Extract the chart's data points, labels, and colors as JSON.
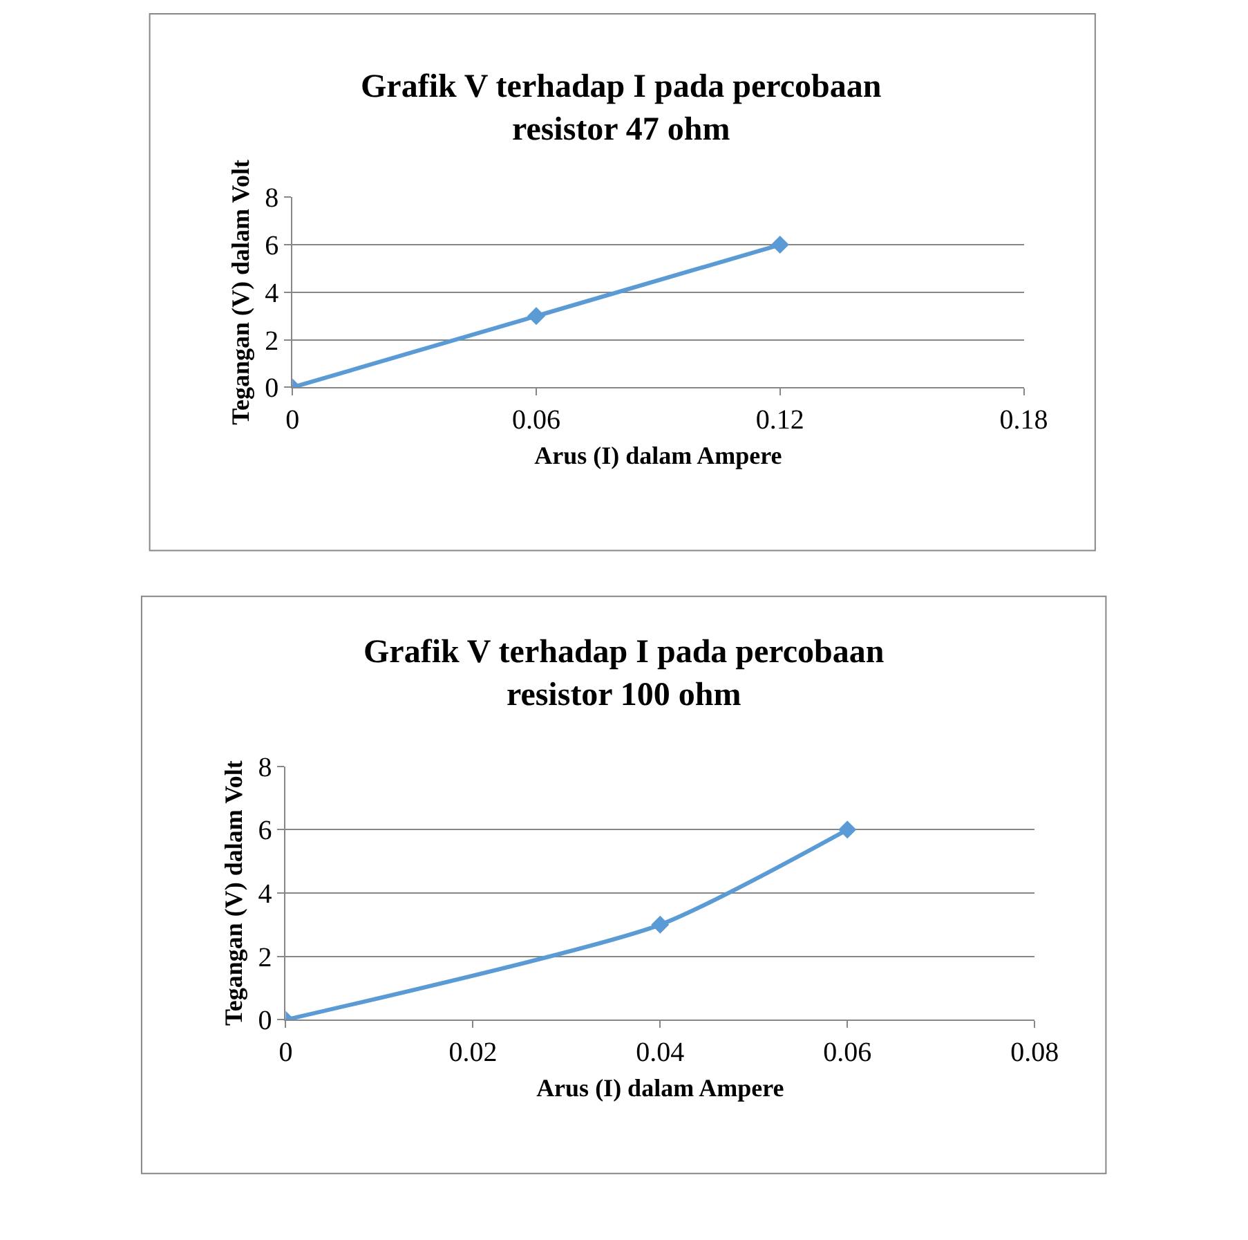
{
  "chart_data": [
    {
      "type": "line",
      "title": "Grafik V terhadap I pada percobaan resistor 47 ohm",
      "xlabel": "Arus (I) dalam Ampere",
      "ylabel": "Tegangan (V) dalam Volt",
      "x": [
        0,
        0.06,
        0.12
      ],
      "series": [
        {
          "color": "#5b9bd5",
          "values": [
            0,
            3,
            6
          ]
        }
      ],
      "xlim": [
        0,
        0.18
      ],
      "xticks": [
        0,
        0.06,
        0.12,
        0.18
      ],
      "ylim": [
        0,
        8
      ],
      "yticks": [
        0,
        2,
        4,
        6,
        8
      ],
      "grid": "y",
      "marker": "diamond"
    },
    {
      "type": "line",
      "title": "Grafik V terhadap I pada percobaan resistor 100 ohm",
      "xlabel": "Arus (I) dalam Ampere",
      "ylabel": "Tegangan (V) dalam Volt",
      "x": [
        0,
        0.04,
        0.06
      ],
      "series": [
        {
          "color": "#5b9bd5",
          "values": [
            0,
            3,
            6
          ]
        }
      ],
      "xlim": [
        0,
        0.08
      ],
      "xticks": [
        0,
        0.02,
        0.04,
        0.06,
        0.08
      ],
      "ylim": [
        0,
        8
      ],
      "yticks": [
        0,
        2,
        4,
        6,
        8
      ],
      "grid": "y",
      "marker": "diamond"
    }
  ]
}
